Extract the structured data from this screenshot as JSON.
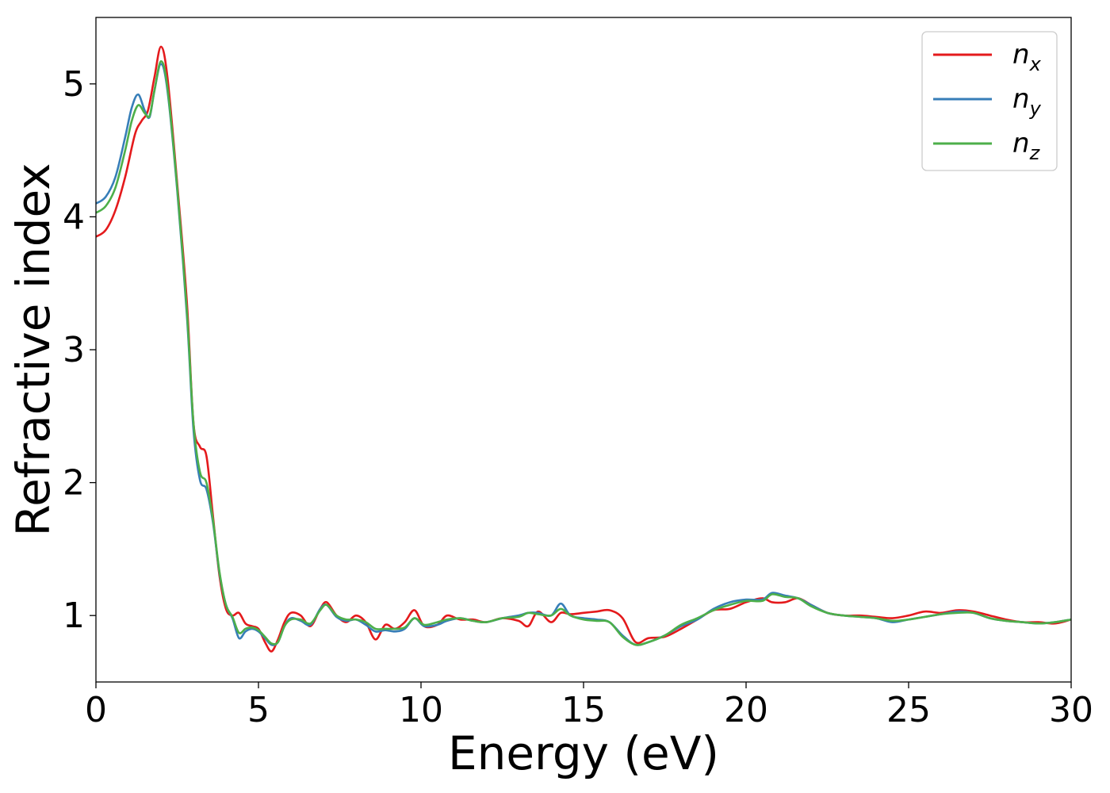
{
  "chart_data": {
    "type": "line",
    "xlabel": "Energy (eV)",
    "ylabel": "Refractive index",
    "xlim": [
      0,
      30
    ],
    "ylim": [
      0.5,
      5.5
    ],
    "xticks": [
      0,
      5,
      10,
      15,
      20,
      25,
      30
    ],
    "yticks": [
      1,
      2,
      3,
      4,
      5
    ],
    "grid": false,
    "legend_position": "top-right",
    "series": [
      {
        "name": "n",
        "subscript": "x",
        "color": "#e41a1c",
        "x": [
          0,
          0.3,
          0.6,
          0.9,
          1.2,
          1.4,
          1.6,
          1.8,
          2.0,
          2.2,
          2.5,
          2.8,
          3.0,
          3.2,
          3.4,
          3.6,
          3.8,
          4.0,
          4.2,
          4.4,
          4.6,
          4.8,
          5.0,
          5.2,
          5.4,
          5.6,
          5.8,
          6.0,
          6.3,
          6.6,
          6.9,
          7.1,
          7.4,
          7.7,
          8.0,
          8.3,
          8.6,
          8.9,
          9.2,
          9.5,
          9.8,
          10.1,
          10.5,
          10.8,
          11.2,
          11.6,
          12.0,
          12.5,
          13.0,
          13.3,
          13.6,
          14.0,
          14.3,
          14.6,
          15.0,
          15.4,
          15.8,
          16.2,
          16.6,
          17.0,
          17.5,
          18.0,
          18.5,
          19.0,
          19.5,
          20.0,
          20.5,
          20.8,
          21.2,
          21.6,
          22.0,
          22.5,
          23.0,
          23.5,
          24.0,
          24.5,
          25.0,
          25.5,
          26.0,
          26.5,
          27.0,
          27.5,
          28.0,
          28.5,
          29.0,
          29.5,
          30.0
        ],
        "y": [
          3.85,
          3.9,
          4.05,
          4.3,
          4.62,
          4.72,
          4.8,
          5.05,
          5.28,
          5.05,
          4.25,
          3.35,
          2.45,
          2.27,
          2.2,
          1.75,
          1.3,
          1.05,
          1.0,
          1.02,
          0.94,
          0.92,
          0.9,
          0.8,
          0.73,
          0.82,
          0.95,
          1.02,
          1.0,
          0.92,
          1.05,
          1.1,
          1.0,
          0.95,
          1.0,
          0.95,
          0.82,
          0.93,
          0.9,
          0.95,
          1.04,
          0.92,
          0.93,
          1.0,
          0.97,
          0.97,
          0.95,
          0.98,
          0.96,
          0.92,
          1.03,
          0.95,
          1.02,
          1.01,
          1.02,
          1.03,
          1.04,
          0.98,
          0.8,
          0.83,
          0.84,
          0.9,
          0.97,
          1.04,
          1.05,
          1.1,
          1.13,
          1.1,
          1.1,
          1.13,
          1.08,
          1.02,
          1.0,
          1.0,
          0.99,
          0.98,
          1.0,
          1.03,
          1.02,
          1.04,
          1.03,
          1.0,
          0.97,
          0.95,
          0.95,
          0.94,
          0.97
        ]
      },
      {
        "name": "n",
        "subscript": "y",
        "color": "#377eb8",
        "x": [
          0,
          0.3,
          0.6,
          0.9,
          1.1,
          1.3,
          1.5,
          1.65,
          1.8,
          2.0,
          2.2,
          2.5,
          2.8,
          3.0,
          3.2,
          3.4,
          3.6,
          3.8,
          4.0,
          4.2,
          4.4,
          4.6,
          4.8,
          5.0,
          5.2,
          5.4,
          5.6,
          5.8,
          6.0,
          6.3,
          6.6,
          6.9,
          7.1,
          7.4,
          7.7,
          8.0,
          8.3,
          8.6,
          8.9,
          9.2,
          9.5,
          9.8,
          10.1,
          10.5,
          10.8,
          11.2,
          11.6,
          12.0,
          12.5,
          13.0,
          13.3,
          13.6,
          14.0,
          14.3,
          14.6,
          15.0,
          15.4,
          15.8,
          16.2,
          16.6,
          17.0,
          17.5,
          18.0,
          18.5,
          19.0,
          19.5,
          20.0,
          20.5,
          20.8,
          21.2,
          21.6,
          22.0,
          22.5,
          23.0,
          23.5,
          24.0,
          24.5,
          25.0,
          25.5,
          26.0,
          26.5,
          27.0,
          27.5,
          28.0,
          28.5,
          29.0,
          29.5,
          30.0
        ],
        "y": [
          4.1,
          4.15,
          4.3,
          4.6,
          4.82,
          4.92,
          4.8,
          4.75,
          4.95,
          5.15,
          4.95,
          4.2,
          3.25,
          2.4,
          2.02,
          1.95,
          1.7,
          1.32,
          1.08,
          0.98,
          0.83,
          0.88,
          0.9,
          0.88,
          0.83,
          0.78,
          0.8,
          0.92,
          0.98,
          0.96,
          0.93,
          1.05,
          1.08,
          0.99,
          0.96,
          0.97,
          0.93,
          0.88,
          0.89,
          0.88,
          0.9,
          0.98,
          0.92,
          0.93,
          0.96,
          0.98,
          0.96,
          0.95,
          0.98,
          1.0,
          1.02,
          1.02,
          1.0,
          1.09,
          1.0,
          0.98,
          0.97,
          0.95,
          0.85,
          0.78,
          0.8,
          0.85,
          0.92,
          0.97,
          1.05,
          1.1,
          1.12,
          1.12,
          1.17,
          1.15,
          1.13,
          1.08,
          1.02,
          1.0,
          0.99,
          0.98,
          0.95,
          0.97,
          0.99,
          1.01,
          1.03,
          1.02,
          0.98,
          0.96,
          0.95,
          0.94,
          0.95,
          0.97
        ]
      },
      {
        "name": "n",
        "subscript": "z",
        "color": "#4daf4a",
        "x": [
          0,
          0.3,
          0.6,
          0.9,
          1.1,
          1.3,
          1.5,
          1.65,
          1.8,
          2.0,
          2.2,
          2.5,
          2.8,
          3.0,
          3.2,
          3.4,
          3.6,
          3.8,
          4.0,
          4.2,
          4.4,
          4.6,
          4.8,
          5.0,
          5.2,
          5.4,
          5.6,
          5.8,
          6.0,
          6.3,
          6.6,
          6.9,
          7.1,
          7.4,
          7.7,
          8.0,
          8.3,
          8.6,
          8.9,
          9.2,
          9.5,
          9.8,
          10.1,
          10.5,
          10.8,
          11.2,
          11.6,
          12.0,
          12.5,
          13.0,
          13.3,
          13.6,
          14.0,
          14.3,
          14.6,
          15.0,
          15.4,
          15.8,
          16.2,
          16.6,
          17.0,
          17.5,
          18.0,
          18.5,
          19.0,
          19.5,
          20.0,
          20.5,
          20.8,
          21.2,
          21.6,
          22.0,
          22.5,
          23.0,
          23.5,
          24.0,
          24.5,
          25.0,
          25.5,
          26.0,
          26.5,
          27.0,
          27.5,
          28.0,
          28.5,
          29.0,
          29.5,
          30.0
        ],
        "y": [
          4.03,
          4.08,
          4.22,
          4.5,
          4.72,
          4.84,
          4.78,
          4.76,
          4.95,
          5.17,
          4.97,
          4.22,
          3.28,
          2.45,
          2.08,
          2.0,
          1.72,
          1.33,
          1.08,
          0.99,
          0.87,
          0.9,
          0.91,
          0.89,
          0.84,
          0.79,
          0.8,
          0.92,
          0.97,
          0.97,
          0.94,
          1.04,
          1.08,
          1.0,
          0.97,
          0.97,
          0.95,
          0.9,
          0.9,
          0.9,
          0.91,
          0.98,
          0.93,
          0.95,
          0.97,
          0.98,
          0.96,
          0.95,
          0.98,
          0.99,
          1.02,
          1.01,
          1.0,
          1.05,
          1.0,
          0.97,
          0.96,
          0.95,
          0.84,
          0.78,
          0.8,
          0.85,
          0.93,
          0.98,
          1.04,
          1.08,
          1.11,
          1.11,
          1.16,
          1.14,
          1.13,
          1.07,
          1.02,
          1.0,
          0.99,
          0.98,
          0.96,
          0.97,
          0.99,
          1.01,
          1.02,
          1.02,
          0.98,
          0.96,
          0.95,
          0.94,
          0.95,
          0.97
        ]
      }
    ]
  }
}
